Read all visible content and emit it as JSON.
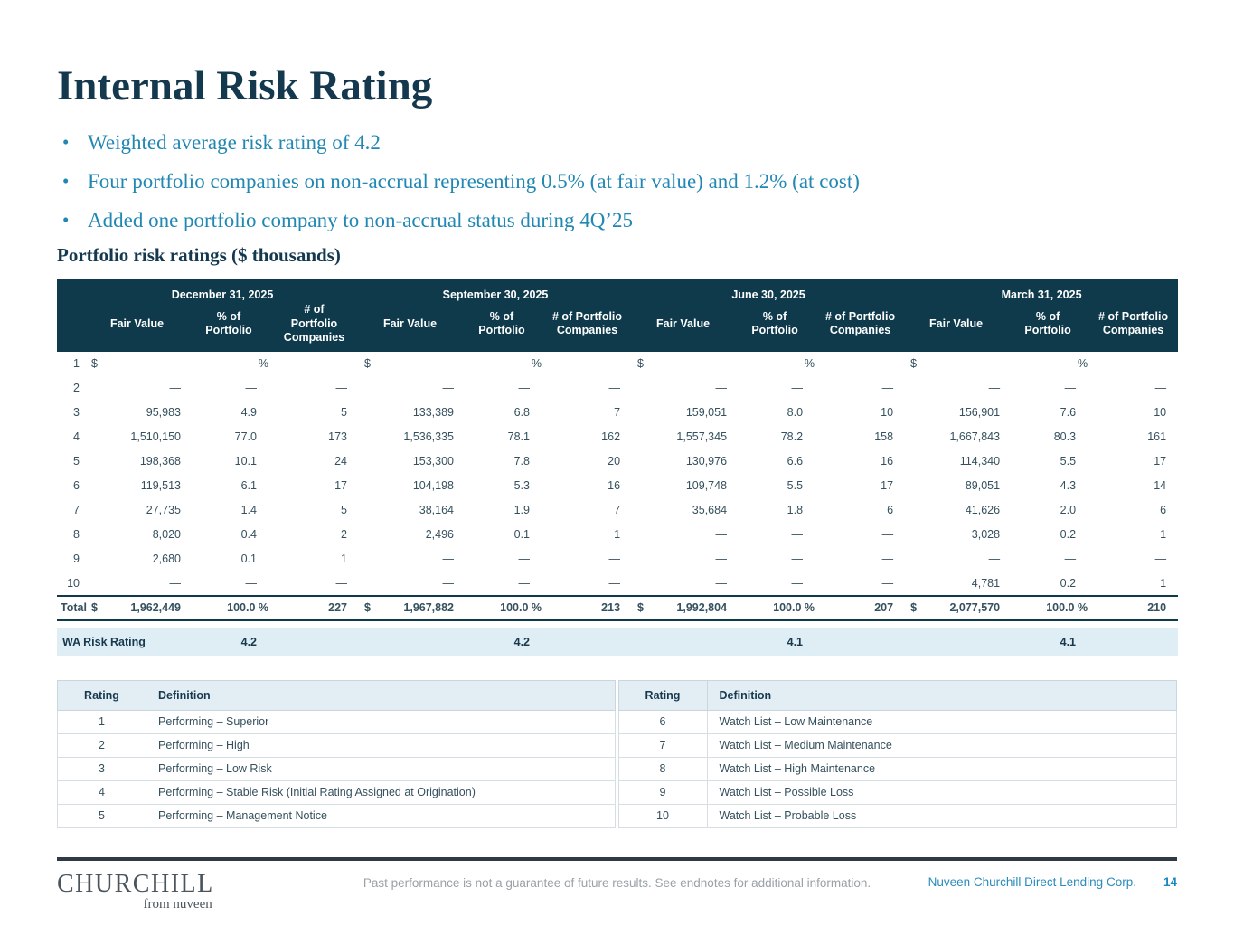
{
  "title": "Internal Risk Rating",
  "bullets": [
    "Weighted average risk rating of 4.2",
    "Four portfolio companies on non-accrual representing 0.5% (at fair value) and 1.2% (at cost)",
    "Added one portfolio company to non-accrual status during 4Q’25"
  ],
  "table_title": "Portfolio risk ratings ($ thousands)",
  "currency_symbol": "$",
  "percent_suffix": " %",
  "risk_table": {
    "periods": [
      {
        "label": "December 31, 2025",
        "count_header": "# of\nPortfolio\nCompanies"
      },
      {
        "label": "September 30, 2025",
        "count_header": "# of Portfolio\nCompanies"
      },
      {
        "label": "June 30, 2025",
        "count_header": "# of Portfolio\nCompanies"
      },
      {
        "label": "March 31, 2025",
        "count_header": "# of Portfolio\nCompanies"
      }
    ],
    "sub_headers": {
      "fair_value": "Fair Value",
      "pct": "% of\nPortfolio"
    },
    "rows": [
      {
        "rating": "1",
        "currency": true,
        "pct_sign": true,
        "cells": [
          [
            "—",
            "—",
            "—"
          ],
          [
            "—",
            "—",
            "—"
          ],
          [
            "—",
            "—",
            "—"
          ],
          [
            "—",
            "—",
            "—"
          ]
        ]
      },
      {
        "rating": "2",
        "currency": false,
        "pct_sign": false,
        "cells": [
          [
            "—",
            "—",
            "—"
          ],
          [
            "—",
            "—",
            "—"
          ],
          [
            "—",
            "—",
            "—"
          ],
          [
            "—",
            "—",
            "—"
          ]
        ]
      },
      {
        "rating": "3",
        "currency": false,
        "pct_sign": false,
        "cells": [
          [
            "95,983",
            "4.9",
            "5"
          ],
          [
            "133,389",
            "6.8",
            "7"
          ],
          [
            "159,051",
            "8.0",
            "10"
          ],
          [
            "156,901",
            "7.6",
            "10"
          ]
        ]
      },
      {
        "rating": "4",
        "currency": false,
        "pct_sign": false,
        "cells": [
          [
            "1,510,150",
            "77.0",
            "173"
          ],
          [
            "1,536,335",
            "78.1",
            "162"
          ],
          [
            "1,557,345",
            "78.2",
            "158"
          ],
          [
            "1,667,843",
            "80.3",
            "161"
          ]
        ]
      },
      {
        "rating": "5",
        "currency": false,
        "pct_sign": false,
        "cells": [
          [
            "198,368",
            "10.1",
            "24"
          ],
          [
            "153,300",
            "7.8",
            "20"
          ],
          [
            "130,976",
            "6.6",
            "16"
          ],
          [
            "114,340",
            "5.5",
            "17"
          ]
        ]
      },
      {
        "rating": "6",
        "currency": false,
        "pct_sign": false,
        "cells": [
          [
            "119,513",
            "6.1",
            "17"
          ],
          [
            "104,198",
            "5.3",
            "16"
          ],
          [
            "109,748",
            "5.5",
            "17"
          ],
          [
            "89,051",
            "4.3",
            "14"
          ]
        ]
      },
      {
        "rating": "7",
        "currency": false,
        "pct_sign": false,
        "cells": [
          [
            "27,735",
            "1.4",
            "5"
          ],
          [
            "38,164",
            "1.9",
            "7"
          ],
          [
            "35,684",
            "1.8",
            "6"
          ],
          [
            "41,626",
            "2.0",
            "6"
          ]
        ]
      },
      {
        "rating": "8",
        "currency": false,
        "pct_sign": false,
        "cells": [
          [
            "8,020",
            "0.4",
            "2"
          ],
          [
            "2,496",
            "0.1",
            "1"
          ],
          [
            "—",
            "—",
            "—"
          ],
          [
            "3,028",
            "0.2",
            "1"
          ]
        ]
      },
      {
        "rating": "9",
        "currency": false,
        "pct_sign": false,
        "cells": [
          [
            "2,680",
            "0.1",
            "1"
          ],
          [
            "—",
            "—",
            "—"
          ],
          [
            "—",
            "—",
            "—"
          ],
          [
            "—",
            "—",
            "—"
          ]
        ]
      },
      {
        "rating": "10",
        "currency": false,
        "pct_sign": false,
        "cells": [
          [
            "—",
            "—",
            "—"
          ],
          [
            "—",
            "—",
            "—"
          ],
          [
            "—",
            "—",
            "—"
          ],
          [
            "4,781",
            "0.2",
            "1"
          ]
        ]
      }
    ],
    "total": {
      "label": "Total",
      "currency": true,
      "pct_sign": true,
      "cells": [
        [
          "1,962,449",
          "100.0",
          "227"
        ],
        [
          "1,967,882",
          "100.0",
          "213"
        ],
        [
          "1,992,804",
          "100.0",
          "207"
        ],
        [
          "2,077,570",
          "100.0",
          "210"
        ]
      ]
    },
    "wa": {
      "label": "WA Risk Rating",
      "values": [
        "4.2",
        "4.2",
        "4.1",
        "4.1"
      ]
    }
  },
  "definitions": {
    "col_headers": [
      "Rating",
      "Definition"
    ],
    "left": [
      [
        "1",
        "Performing – Superior"
      ],
      [
        "2",
        "Performing – High"
      ],
      [
        "3",
        "Performing – Low Risk"
      ],
      [
        "4",
        "Performing – Stable Risk (Initial Rating Assigned at Origination)"
      ],
      [
        "5",
        "Performing – Management Notice"
      ]
    ],
    "right": [
      [
        "6",
        "Watch List – Low Maintenance"
      ],
      [
        "7",
        "Watch List – Medium Maintenance"
      ],
      [
        "8",
        "Watch List – High Maintenance"
      ],
      [
        "9",
        "Watch List – Possible Loss"
      ],
      [
        "10",
        "Watch List – Probable Loss"
      ]
    ]
  },
  "footer": {
    "logo_primary": "CHURCHILL",
    "logo_secondary": "from nuveen",
    "disclaimer": "Past performance is not a guarantee of future results. See endnotes for additional information.",
    "company": "Nuveen Churchill Direct Lending Corp.",
    "page_number": "14"
  },
  "colors": {
    "header_navy": "#0e3a4c",
    "title_navy": "#14394f",
    "bullet_teal": "#2187b3",
    "band_light_blue": "#dfeef4",
    "defs_header_blue": "#e3eef4",
    "data_text": "#35505e",
    "footer_rule": "#2e3b46",
    "company_blue": "#2a8bbd",
    "page_number_blue": "#1a86c2"
  }
}
